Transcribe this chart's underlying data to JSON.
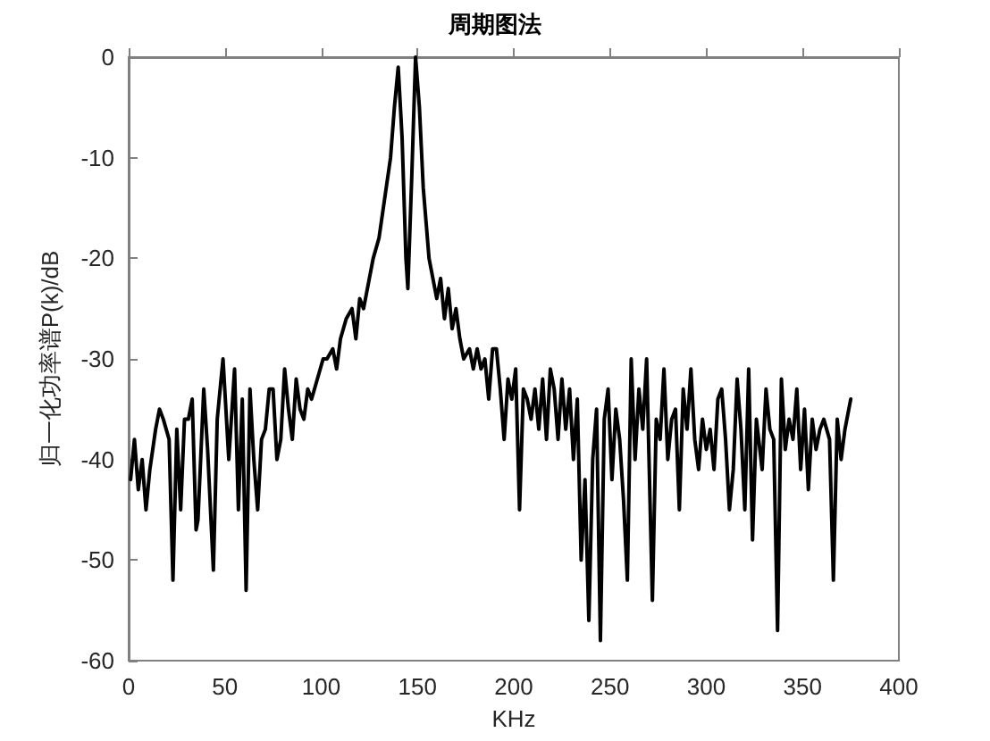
{
  "chart_data": {
    "type": "line",
    "title": "周期图法",
    "xlabel": "KHz",
    "ylabel": "归一化功率谱P(k)/dB",
    "xlim": [
      0,
      400
    ],
    "xticks": [
      0,
      50,
      100,
      150,
      200,
      250,
      300,
      350,
      400
    ],
    "ylim": [
      -60,
      0
    ],
    "yticks": [
      -60,
      -50,
      -40,
      -30,
      -20,
      -10,
      0
    ],
    "grid": false,
    "marker": "none",
    "line_style": "solid",
    "series": [
      {
        "color": "#000000",
        "x": [
          1,
          3,
          5,
          7,
          9,
          11,
          14,
          16,
          18,
          21,
          23,
          25,
          27,
          29,
          31,
          33,
          35,
          36,
          39,
          41,
          44,
          46,
          49,
          52,
          55,
          57,
          59,
          61,
          63,
          65,
          67,
          69,
          71,
          73,
          75,
          77,
          79,
          81,
          83,
          85,
          87,
          89,
          91,
          93,
          95,
          98,
          101,
          103,
          106,
          108,
          110,
          113,
          116,
          118,
          120,
          122,
          125,
          127,
          130,
          133,
          136,
          138,
          140,
          142,
          144,
          145,
          147,
          149,
          151,
          153,
          156,
          158,
          160,
          162,
          164,
          166,
          168,
          170,
          172,
          174,
          177,
          179,
          181,
          183,
          185,
          187,
          189,
          191,
          193,
          195,
          197,
          199,
          201,
          203,
          205,
          207,
          209,
          211,
          213,
          215,
          217,
          219,
          221,
          223,
          225,
          227,
          229,
          231,
          233,
          235,
          237,
          239,
          241,
          243,
          245,
          247,
          249,
          251,
          253,
          255,
          257,
          259,
          261,
          263,
          265,
          267,
          269,
          272,
          274,
          276,
          278,
          280,
          282,
          284,
          286,
          288,
          290,
          292,
          294,
          296,
          298,
          300,
          302,
          304,
          306,
          308,
          310,
          312,
          314,
          316,
          318,
          320,
          322,
          324,
          326,
          329,
          331,
          333,
          335,
          337,
          339,
          341,
          343,
          345,
          347,
          349,
          351,
          353,
          355,
          357,
          359,
          361,
          364,
          366,
          368,
          370,
          372,
          375
        ],
        "values": [
          -42,
          -38,
          -43,
          -40,
          -45,
          -41,
          -37,
          -35,
          -36,
          -38,
          -52,
          -37,
          -45,
          -36,
          -36,
          -34,
          -47,
          -46,
          -33,
          -39,
          -51,
          -36,
          -30,
          -40,
          -31,
          -45,
          -34,
          -53,
          -33,
          -40,
          -45,
          -38,
          -37,
          -33,
          -33,
          -40,
          -38,
          -31,
          -35,
          -38,
          -32,
          -35,
          -36,
          -33,
          -34,
          -32,
          -30,
          -30,
          -29,
          -31,
          -28,
          -26,
          -25,
          -28,
          -24,
          -25,
          -22,
          -20,
          -18,
          -14,
          -10,
          -5,
          -1,
          -8,
          -20,
          -23,
          -12,
          0,
          -5,
          -13,
          -20,
          -22,
          -24,
          -22,
          -26,
          -23,
          -27,
          -25,
          -28,
          -30,
          -29,
          -31,
          -29,
          -31,
          -30,
          -34,
          -29,
          -29,
          -33,
          -38,
          -32,
          -34,
          -31,
          -45,
          -33,
          -34,
          -36,
          -33,
          -37,
          -32,
          -38,
          -31,
          -33,
          -38,
          -32,
          -37,
          -33,
          -40,
          -34,
          -50,
          -42,
          -56,
          -40,
          -35,
          -58,
          -36,
          -33,
          -42,
          -35,
          -38,
          -44,
          -52,
          -30,
          -40,
          -33,
          -37,
          -30,
          -54,
          -36,
          -38,
          -31,
          -40,
          -36,
          -35,
          -45,
          -33,
          -37,
          -31,
          -38,
          -41,
          -36,
          -39,
          -37,
          -41,
          -34,
          -33,
          -38,
          -45,
          -41,
          -32,
          -37,
          -45,
          -31,
          -48,
          -36,
          -41,
          -33,
          -37,
          -38,
          -57,
          -32,
          -39,
          -36,
          -38,
          -33,
          -41,
          -35,
          -43,
          -36,
          -39,
          -37,
          -36,
          -38,
          -52,
          -36,
          -40,
          -37,
          -34
        ]
      }
    ]
  }
}
